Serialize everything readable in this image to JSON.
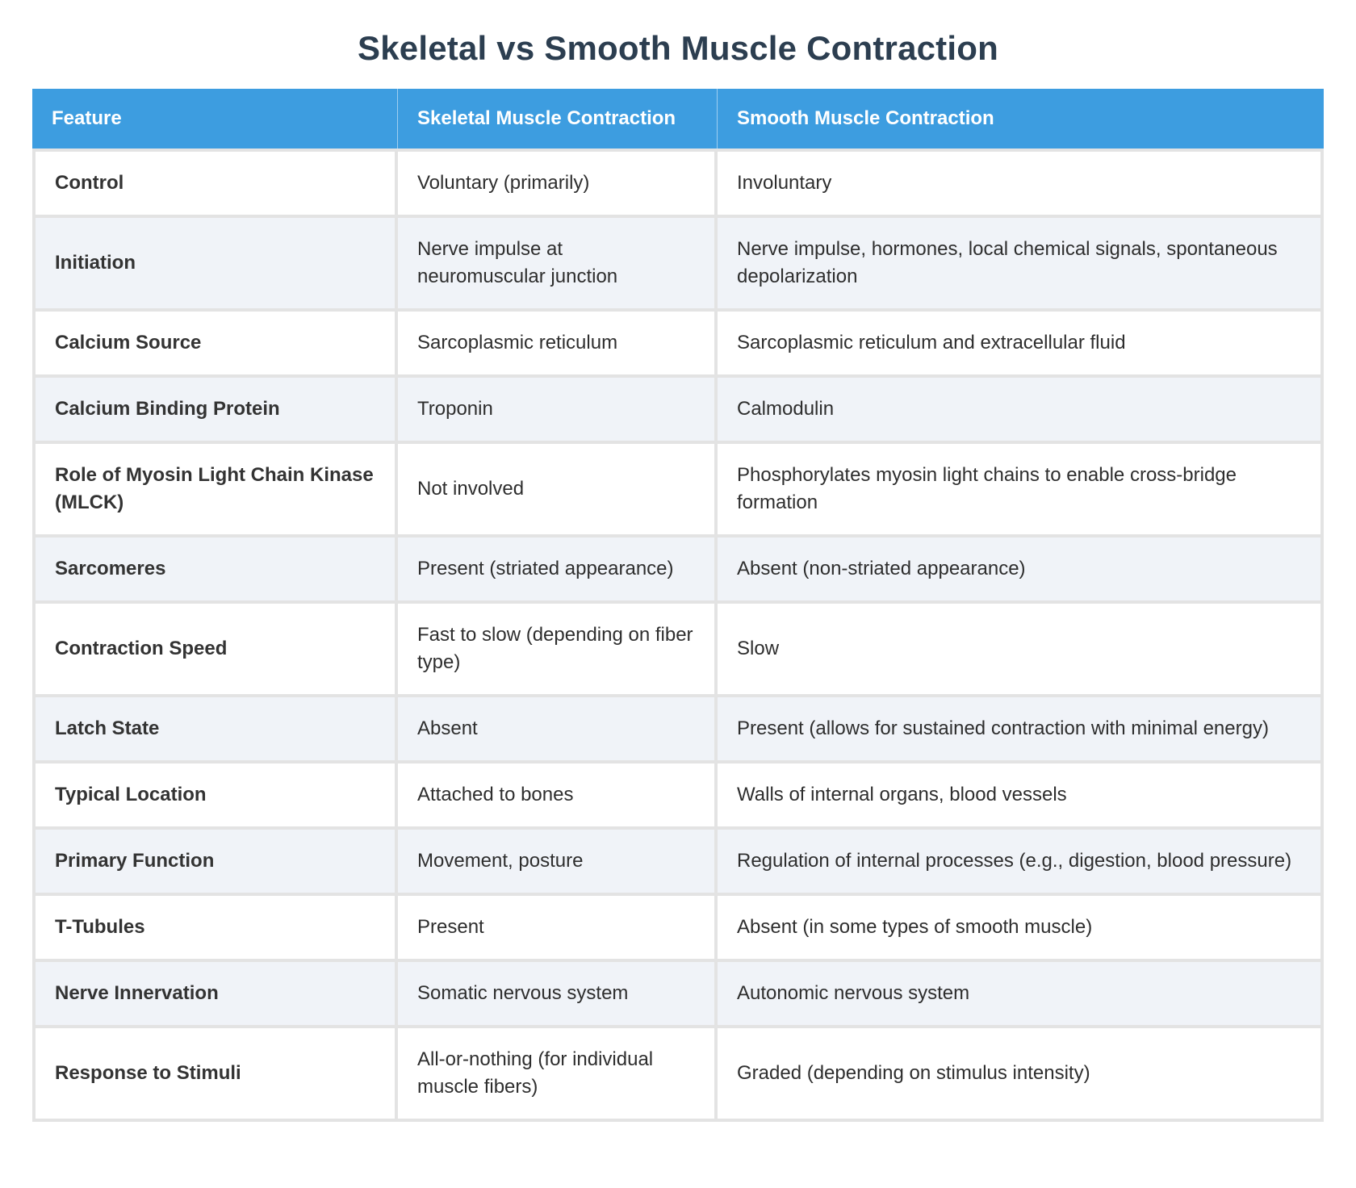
{
  "page_title": "Skeletal vs Smooth Muscle Contraction",
  "colors": {
    "header_bg": "#3d9de0",
    "stripe_bg": "#f0f3f8",
    "cell_border": "#e3e3e3",
    "title_color": "#2c3e50"
  },
  "chart_data": {
    "type": "table",
    "title": "Skeletal vs Smooth Muscle Contraction",
    "columns": [
      "Feature",
      "Skeletal Muscle Contraction",
      "Smooth Muscle Contraction"
    ],
    "rows": [
      {
        "feature": "Control",
        "skeletal": "Voluntary (primarily)",
        "smooth": "Involuntary"
      },
      {
        "feature": "Initiation",
        "skeletal": "Nerve impulse at neuromuscular junction",
        "smooth": "Nerve impulse, hormones, local chemical signals, spontaneous depolarization"
      },
      {
        "feature": "Calcium Source",
        "skeletal": "Sarcoplasmic reticulum",
        "smooth": "Sarcoplasmic reticulum and extracellular fluid"
      },
      {
        "feature": "Calcium Binding Protein",
        "skeletal": "Troponin",
        "smooth": "Calmodulin"
      },
      {
        "feature": "Role of Myosin Light Chain Kinase (MLCK)",
        "skeletal": "Not involved",
        "smooth": "Phosphorylates myosin light chains to enable cross-bridge formation"
      },
      {
        "feature": "Sarcomeres",
        "skeletal": "Present (striated appearance)",
        "smooth": "Absent (non-striated appearance)"
      },
      {
        "feature": "Contraction Speed",
        "skeletal": "Fast to slow (depending on fiber type)",
        "smooth": "Slow"
      },
      {
        "feature": "Latch State",
        "skeletal": "Absent",
        "smooth": "Present (allows for sustained contraction with minimal energy)"
      },
      {
        "feature": "Typical Location",
        "skeletal": "Attached to bones",
        "smooth": "Walls of internal organs, blood vessels"
      },
      {
        "feature": "Primary Function",
        "skeletal": "Movement, posture",
        "smooth": "Regulation of internal processes (e.g., digestion, blood pressure)"
      },
      {
        "feature": "T-Tubules",
        "skeletal": "Present",
        "smooth": "Absent (in some types of smooth muscle)"
      },
      {
        "feature": "Nerve Innervation",
        "skeletal": "Somatic nervous system",
        "smooth": "Autonomic nervous system"
      },
      {
        "feature": "Response to Stimuli",
        "skeletal": "All-or-nothing (for individual muscle fibers)",
        "smooth": "Graded (depending on stimulus intensity)"
      }
    ]
  }
}
